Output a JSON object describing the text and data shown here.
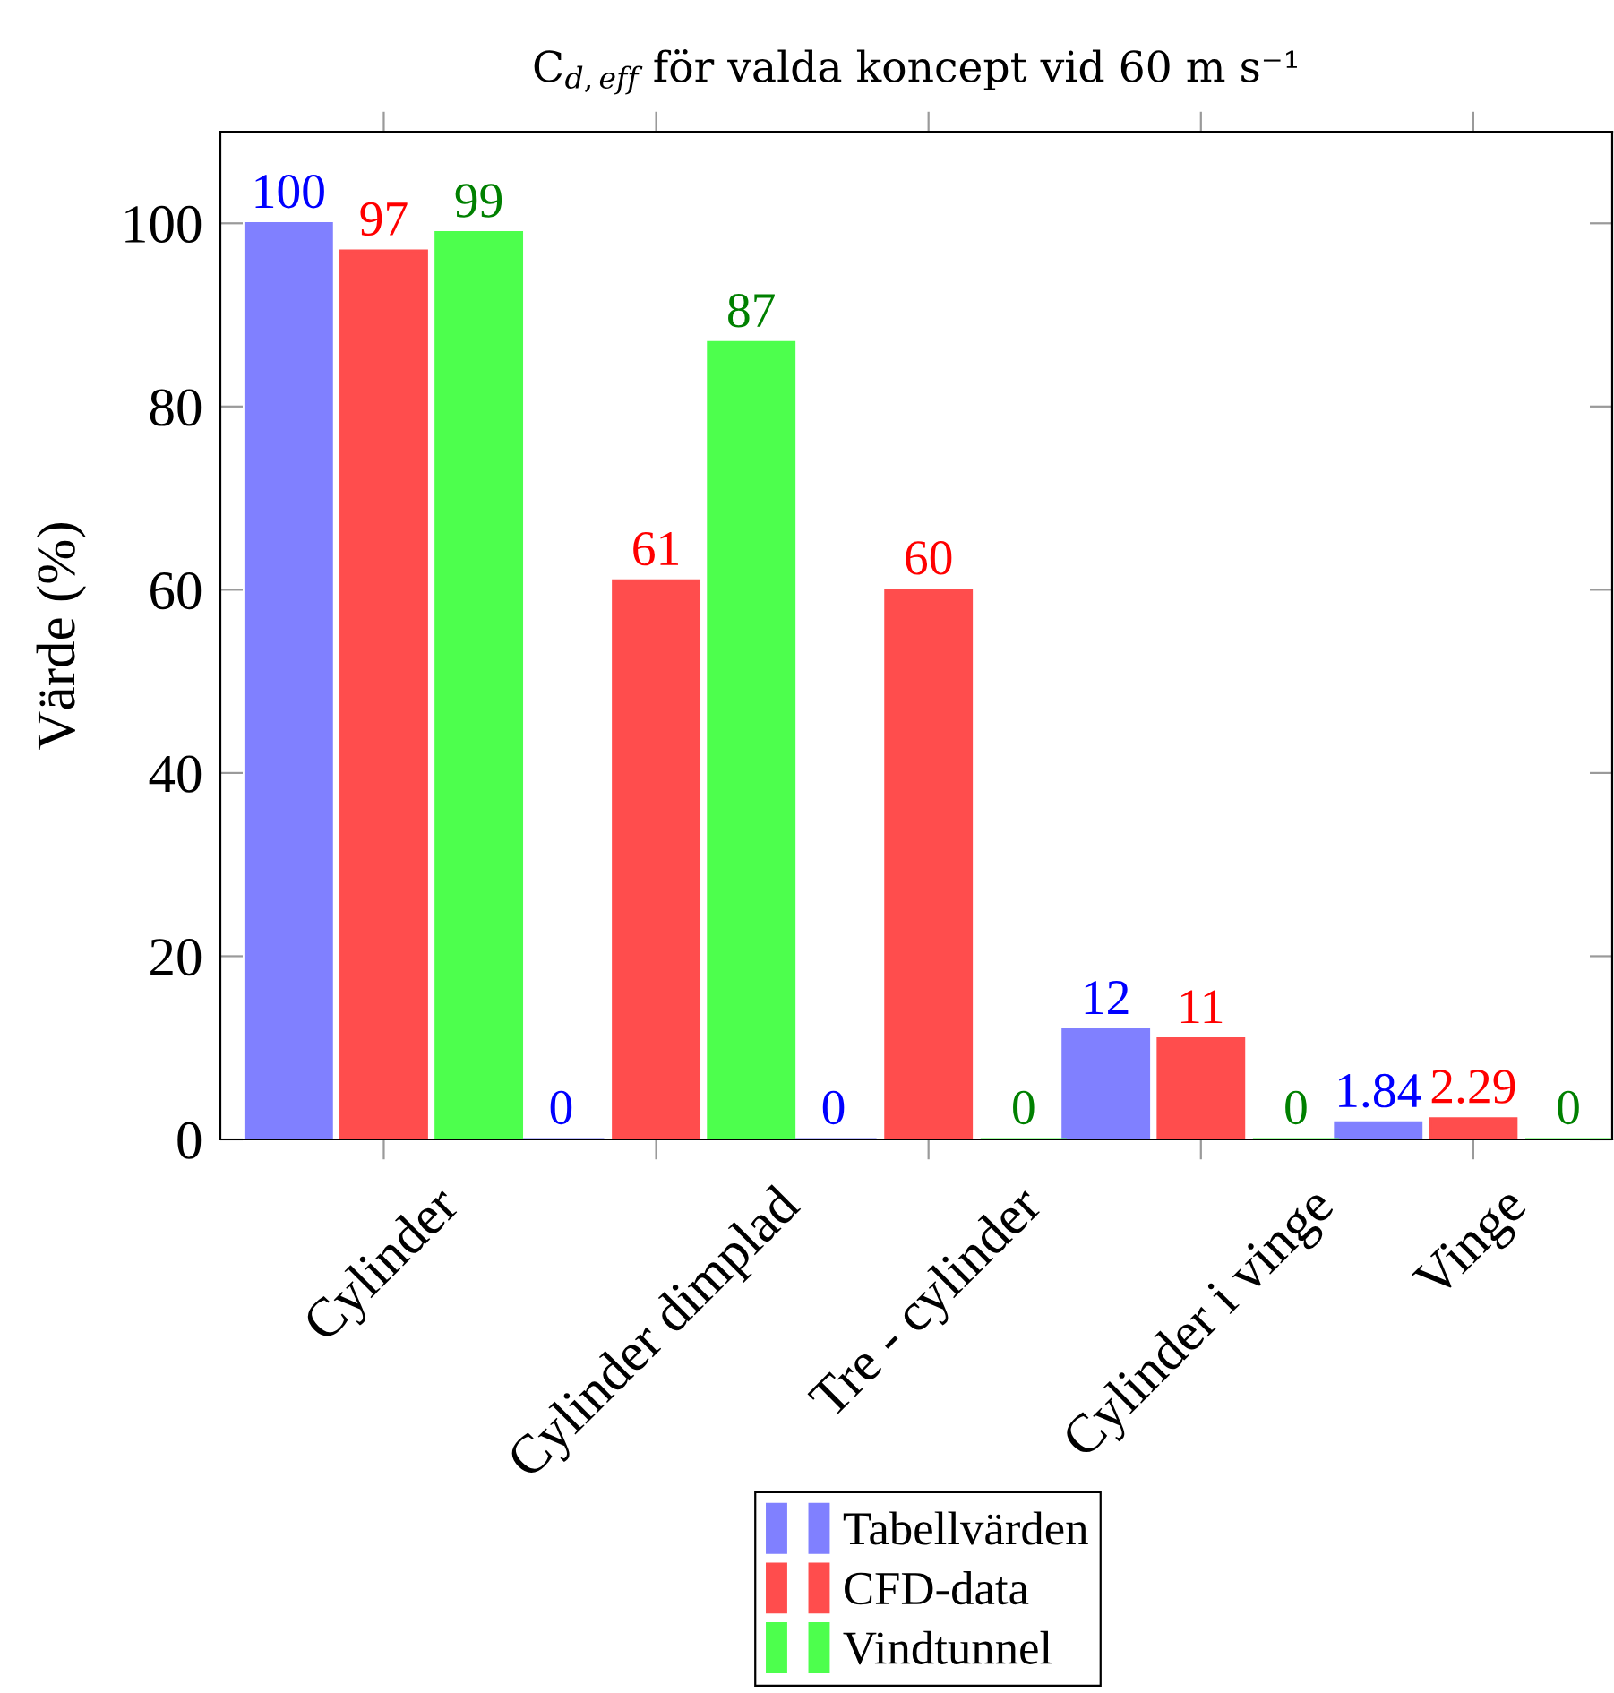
{
  "chart_data": {
    "type": "bar",
    "title": "C$_{d,eff}$ för valda koncept vid 60 m s⁻¹",
    "ylabel": "Värde (%)",
    "categories": [
      "Cylinder",
      "Cylinder dimplad",
      "Tre - cylinder",
      "Cylinder i vinge",
      "Vinge"
    ],
    "series": [
      {
        "name": "Tabellvärden",
        "color": "#8080ff",
        "values": [
          100,
          0,
          0,
          12,
          1.84
        ]
      },
      {
        "name": "CFD-data",
        "color": "#ff4d4d",
        "values": [
          97,
          61,
          60,
          11,
          2.29
        ]
      },
      {
        "name": "Vindtunnel",
        "color": "#4dff4d",
        "values": [
          99,
          87,
          0,
          0,
          0
        ]
      }
    ],
    "ylim": [
      0,
      110
    ],
    "yticks": [
      0,
      20,
      40,
      60,
      80,
      100
    ],
    "data_labels": true,
    "legend": "bottom"
  }
}
